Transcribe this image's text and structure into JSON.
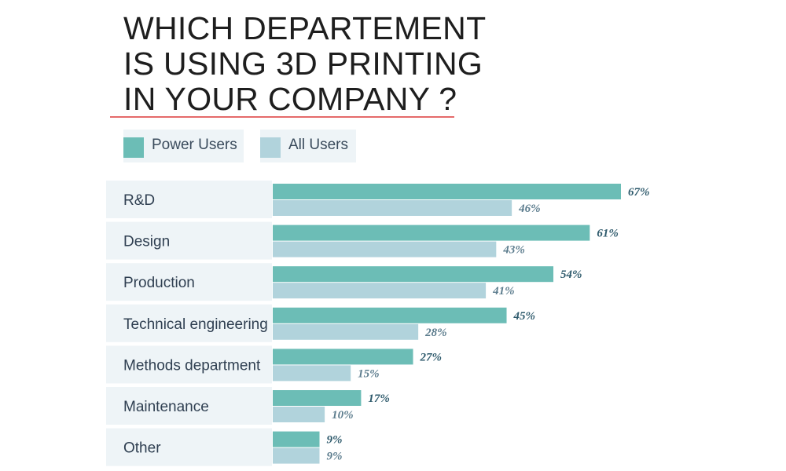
{
  "title_lines": [
    "WHICH DEPARTEMENT",
    "IS USING 3D PRINTING",
    "IN YOUR COMPANY ?"
  ],
  "colors": {
    "power_users": "#6cbdb6",
    "all_users": "#b1d3dc",
    "power_label": "#2e5a6c",
    "all_label": "#5d7d8e",
    "row_band": "#eef4f7",
    "title_rule": "#e56a6a"
  },
  "legend": {
    "power_users": "Power Users",
    "all_users": "All Users"
  },
  "chart_data": {
    "type": "bar",
    "orientation": "horizontal",
    "title": "WHICH DEPARTEMENT IS USING 3D PRINTING IN YOUR COMPANY ?",
    "xlabel": "",
    "ylabel": "",
    "xlim": [
      0,
      75
    ],
    "categories": [
      "R&D",
      "Design",
      "Production",
      "Technical engineering",
      "Methods department",
      "Maintenance",
      "Other"
    ],
    "series": [
      {
        "name": "Power Users",
        "values": [
          67,
          61,
          54,
          45,
          27,
          17,
          9
        ],
        "labels": [
          "67%",
          "61%",
          "54%",
          "45%",
          "27%",
          "17%",
          "9%"
        ]
      },
      {
        "name": "All Users",
        "values": [
          46,
          43,
          41,
          28,
          15,
          10,
          9
        ],
        "labels": [
          "46%",
          "43%",
          "41%",
          "28%",
          "15%",
          "10%",
          "9%"
        ]
      }
    ],
    "legend_position": "top-left",
    "grid": false
  }
}
